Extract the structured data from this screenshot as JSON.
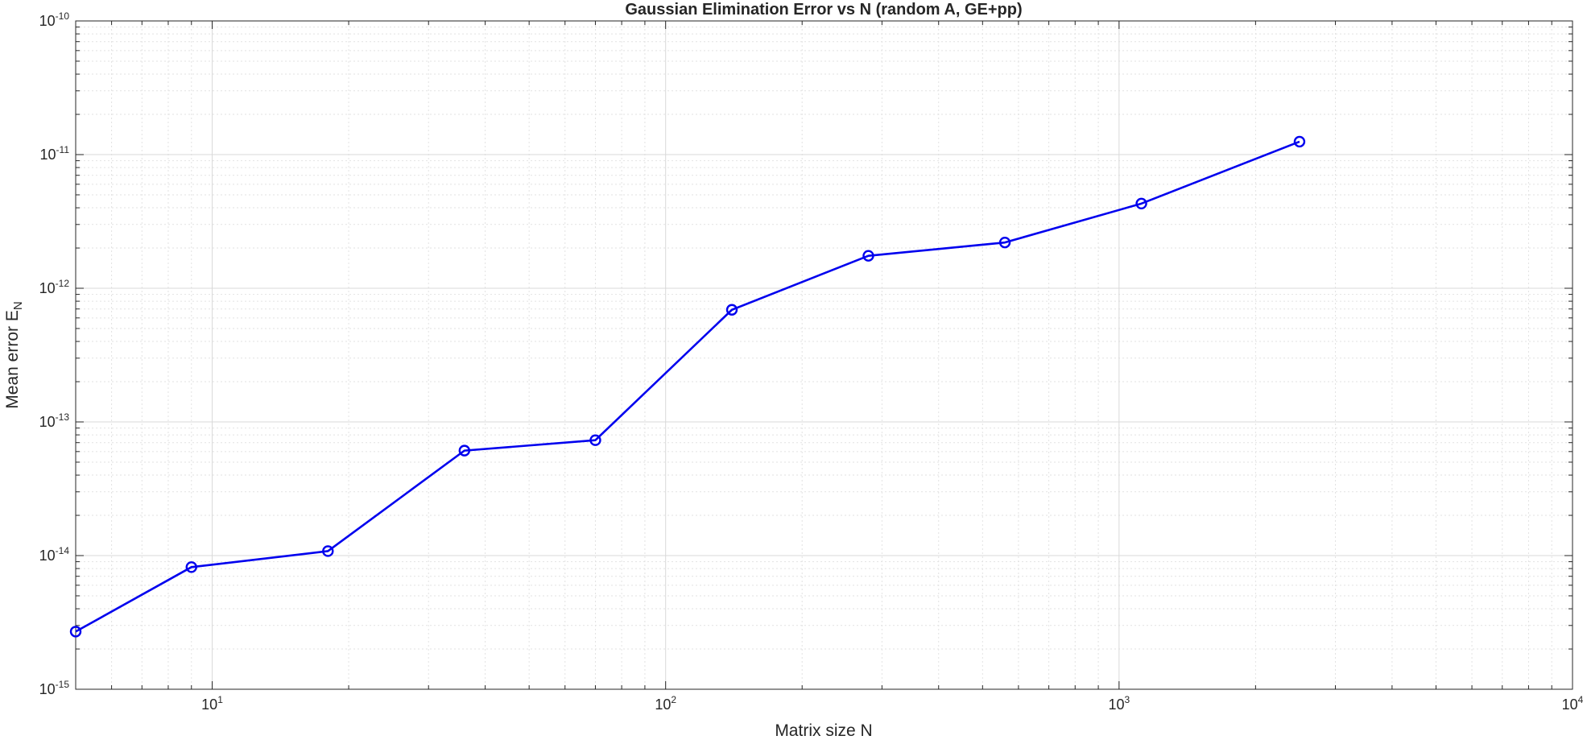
{
  "chart_data": {
    "type": "line",
    "title": "Gaussian Elimination Error vs N (random A, GE+pp)",
    "xlabel": "Matrix size N",
    "ylabel": "Mean  error  E",
    "ylabel_subscript": "N",
    "xscale": "log",
    "yscale": "log",
    "xlim": [
      5,
      10000
    ],
    "ylim": [
      1e-15,
      1e-10
    ],
    "grid": "on (major and minor)",
    "x_ticks": [
      {
        "base": "10",
        "exp": "1",
        "value": 10
      },
      {
        "base": "10",
        "exp": "2",
        "value": 100
      },
      {
        "base": "10",
        "exp": "3",
        "value": 1000
      },
      {
        "base": "10",
        "exp": "4",
        "value": 10000
      }
    ],
    "y_ticks": [
      {
        "base": "10",
        "exp": "-15",
        "value": 1e-15
      },
      {
        "base": "10",
        "exp": "-14",
        "value": 1e-14
      },
      {
        "base": "10",
        "exp": "-13",
        "value": 1e-13
      },
      {
        "base": "10",
        "exp": "-12",
        "value": 1e-12
      },
      {
        "base": "10",
        "exp": "-11",
        "value": 1e-11
      },
      {
        "base": "10",
        "exp": "-10",
        "value": 1e-10
      }
    ],
    "series": [
      {
        "color": "#0000ee",
        "marker": "circle",
        "x": [
          5,
          9,
          18,
          36,
          70,
          140,
          280,
          560,
          1120,
          2500
        ],
        "y": [
          2.7e-15,
          8.2e-15,
          1.08e-14,
          6.1e-14,
          7.3e-14,
          6.9e-13,
          1.75e-12,
          2.2e-12,
          4.3e-12,
          1.25e-11
        ]
      }
    ]
  }
}
